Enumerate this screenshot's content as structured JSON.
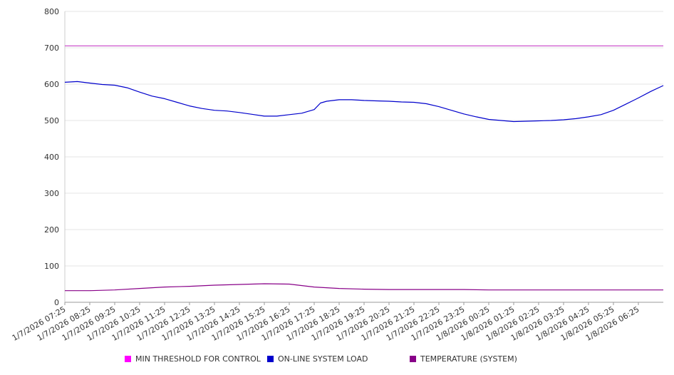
{
  "chart_data": {
    "type": "line",
    "title": "",
    "xlabel": "",
    "ylabel": "",
    "ylim": [
      0,
      800
    ],
    "yticks": [
      0,
      100,
      200,
      300,
      400,
      500,
      600,
      700,
      800
    ],
    "grid": true,
    "legend_position": "bottom",
    "x_tick_labels": [
      "1/7/2026 07:25",
      "1/7/2026 08:25",
      "1/7/2026 09:25",
      "1/7/2026 10:25",
      "1/7/2026 11:25",
      "1/7/2026 12:25",
      "1/7/2026 13:25",
      "1/7/2026 14:25",
      "1/7/2026 15:25",
      "1/7/2026 16:25",
      "1/7/2026 17:25",
      "1/7/2026 18:25",
      "1/7/2026 19:25",
      "1/7/2026 20:25",
      "1/7/2026 21:25",
      "1/7/2026 22:25",
      "1/7/2026 23:25",
      "1/8/2026 00:25",
      "1/8/2026 01:25",
      "1/8/2026 02:25",
      "1/8/2026 03:25",
      "1/8/2026 04:25",
      "1/8/2026 05:25",
      "1/8/2026 06:25"
    ],
    "x_start": "1/7/2026 07:25",
    "x_end": "1/8/2026 07:25",
    "series": [
      {
        "name": "MIN THRESHOLD FOR CONTROL",
        "color": "#ff00ff",
        "line_color": "#cc55cc",
        "points": [
          [
            "1/7/2026 07:25",
            705
          ],
          [
            "1/8/2026 07:25",
            705
          ]
        ]
      },
      {
        "name": "ON-LINE SYSTEM LOAD",
        "color": "#0000cc",
        "points": [
          [
            "1/7/2026 07:25",
            605
          ],
          [
            "1/7/2026 07:55",
            607
          ],
          [
            "1/7/2026 08:25",
            603
          ],
          [
            "1/7/2026 08:55",
            599
          ],
          [
            "1/7/2026 09:25",
            597
          ],
          [
            "1/7/2026 09:55",
            590
          ],
          [
            "1/7/2026 10:25",
            578
          ],
          [
            "1/7/2026 10:55",
            567
          ],
          [
            "1/7/2026 11:25",
            560
          ],
          [
            "1/7/2026 11:55",
            550
          ],
          [
            "1/7/2026 12:25",
            540
          ],
          [
            "1/7/2026 12:55",
            533
          ],
          [
            "1/7/2026 13:25",
            528
          ],
          [
            "1/7/2026 13:55",
            526
          ],
          [
            "1/7/2026 14:25",
            522
          ],
          [
            "1/7/2026 14:55",
            517
          ],
          [
            "1/7/2026 15:25",
            512
          ],
          [
            "1/7/2026 15:55",
            512
          ],
          [
            "1/7/2026 16:25",
            516
          ],
          [
            "1/7/2026 16:55",
            520
          ],
          [
            "1/7/2026 17:25",
            530
          ],
          [
            "1/7/2026 17:40",
            548
          ],
          [
            "1/7/2026 17:55",
            553
          ],
          [
            "1/7/2026 18:25",
            557
          ],
          [
            "1/7/2026 18:55",
            557
          ],
          [
            "1/7/2026 19:25",
            555
          ],
          [
            "1/7/2026 19:55",
            554
          ],
          [
            "1/7/2026 20:25",
            553
          ],
          [
            "1/7/2026 20:55",
            551
          ],
          [
            "1/7/2026 21:25",
            550
          ],
          [
            "1/7/2026 21:55",
            546
          ],
          [
            "1/7/2026 22:25",
            538
          ],
          [
            "1/7/2026 22:55",
            528
          ],
          [
            "1/7/2026 23:25",
            518
          ],
          [
            "1/7/2026 23:55",
            510
          ],
          [
            "1/8/2026 00:25",
            503
          ],
          [
            "1/8/2026 00:55",
            500
          ],
          [
            "1/8/2026 01:25",
            497
          ],
          [
            "1/8/2026 01:55",
            498
          ],
          [
            "1/8/2026 02:25",
            499
          ],
          [
            "1/8/2026 02:55",
            500
          ],
          [
            "1/8/2026 03:25",
            502
          ],
          [
            "1/8/2026 03:55",
            505
          ],
          [
            "1/8/2026 04:25",
            510
          ],
          [
            "1/8/2026 04:55",
            516
          ],
          [
            "1/8/2026 05:25",
            528
          ],
          [
            "1/8/2026 05:55",
            545
          ],
          [
            "1/8/2026 06:25",
            562
          ],
          [
            "1/8/2026 06:55",
            580
          ],
          [
            "1/8/2026 07:25",
            596
          ]
        ]
      },
      {
        "name": "TEMPERATURE (SYSTEM)",
        "color": "#880088",
        "points": [
          [
            "1/7/2026 07:25",
            32
          ],
          [
            "1/7/2026 08:25",
            32
          ],
          [
            "1/7/2026 09:25",
            34
          ],
          [
            "1/7/2026 10:25",
            38
          ],
          [
            "1/7/2026 11:25",
            42
          ],
          [
            "1/7/2026 12:25",
            44
          ],
          [
            "1/7/2026 13:25",
            47
          ],
          [
            "1/7/2026 14:25",
            49
          ],
          [
            "1/7/2026 15:25",
            51
          ],
          [
            "1/7/2026 16:25",
            50
          ],
          [
            "1/7/2026 17:25",
            42
          ],
          [
            "1/7/2026 18:25",
            38
          ],
          [
            "1/7/2026 19:25",
            36
          ],
          [
            "1/7/2026 20:25",
            35
          ],
          [
            "1/7/2026 21:25",
            35
          ],
          [
            "1/7/2026 22:25",
            35
          ],
          [
            "1/7/2026 23:25",
            35
          ],
          [
            "1/8/2026 00:25",
            34
          ],
          [
            "1/8/2026 01:25",
            34
          ],
          [
            "1/8/2026 02:25",
            34
          ],
          [
            "1/8/2026 03:25",
            34
          ],
          [
            "1/8/2026 04:25",
            34
          ],
          [
            "1/8/2026 05:25",
            34
          ],
          [
            "1/8/2026 06:25",
            34
          ],
          [
            "1/8/2026 07:25",
            34
          ]
        ]
      }
    ]
  }
}
